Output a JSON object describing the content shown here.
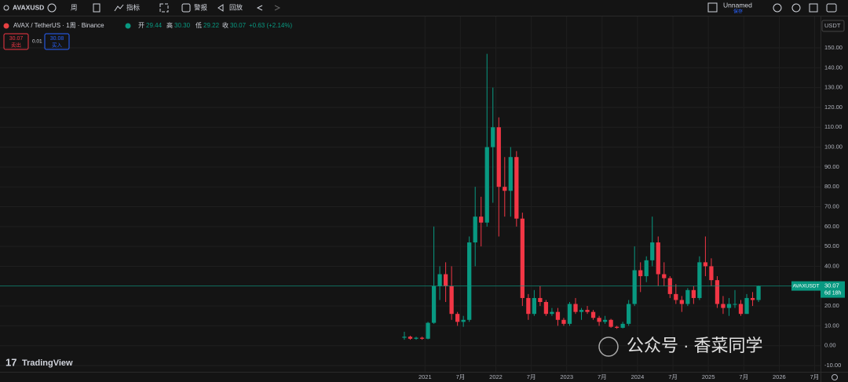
{
  "toolbar": {
    "symbol": "AVAXUSD",
    "interval": "周",
    "indicators": "指标",
    "alerts": "警报",
    "replay": "回放",
    "layout": "Unnamed",
    "save": "保存"
  },
  "legend": {
    "title": "AVAX / TetherUS · 1周 · Binance",
    "open_label": "开",
    "open": "29.44",
    "high_label": "高",
    "high": "30.30",
    "low_label": "低",
    "low": "29.22",
    "close_label": "收",
    "close": "30.07",
    "change": "+0.63 (+2.14%)",
    "sell_price": "30.07",
    "sell": "卖出",
    "spread": "0.01",
    "buy_price": "30.08",
    "buy": "买入"
  },
  "chart_data": {
    "type": "candlestick",
    "currency": "USDT",
    "up_color": "#089981",
    "down_color": "#f23645",
    "x": [
      "2020-09",
      "2020-10",
      "2020-11",
      "2020-12",
      "2021-01",
      "2021-02",
      "2021-03",
      "2021-04",
      "2021-05",
      "2021-06",
      "2021-07",
      "2021-08",
      "2021-09",
      "2021-10",
      "2021-11",
      "2021-12",
      "2022-01",
      "2022-02",
      "2022-03",
      "2022-04",
      "2022-05",
      "2022-06",
      "2022-07",
      "2022-08",
      "2022-09",
      "2022-10",
      "2022-11",
      "2022-12",
      "2023-01",
      "2023-02",
      "2023-03",
      "2023-04",
      "2023-05",
      "2023-06",
      "2023-07",
      "2023-08",
      "2023-09",
      "2023-10",
      "2023-11",
      "2023-12",
      "2024-01",
      "2024-02",
      "2024-03",
      "2024-04",
      "2024-05",
      "2024-06",
      "2024-07",
      "2024-08",
      "2024-09",
      "2024-10",
      "2024-11",
      "2024-12",
      "2025-01",
      "2025-02",
      "2025-03",
      "2025-04",
      "2025-05",
      "2025-06",
      "2025-07",
      "2025-08",
      "2025-09"
    ],
    "open": [
      4,
      4.5,
      3.5,
      4,
      3.5,
      11.5,
      30,
      36,
      30,
      16,
      12,
      13,
      52,
      65,
      62,
      100,
      110,
      80,
      78,
      95,
      64,
      24,
      16,
      24,
      22,
      16,
      17,
      13,
      11,
      21,
      17,
      18,
      17,
      14,
      12,
      13,
      9.5,
      9,
      11,
      21,
      38,
      35,
      43,
      52,
      36,
      34,
      26,
      23,
      21,
      28,
      24,
      42,
      40,
      33,
      21,
      19,
      21,
      21,
      16,
      24,
      23
    ],
    "high": [
      7,
      5,
      4.5,
      4.5,
      12,
      60,
      40,
      42,
      40,
      17,
      15,
      55,
      80,
      75,
      147,
      130,
      115,
      95,
      100,
      98,
      67,
      26,
      28,
      30,
      23,
      19,
      19,
      14,
      22,
      24,
      19,
      20,
      18,
      15,
      15,
      13.5,
      10,
      12,
      23,
      50,
      42,
      45,
      65,
      55,
      42,
      35,
      31,
      25,
      29,
      30,
      45,
      55,
      44,
      35,
      25,
      24,
      28,
      23,
      26,
      27,
      30.3
    ],
    "low": [
      3,
      3,
      3,
      3,
      3.2,
      11,
      23,
      22,
      13,
      10,
      9.5,
      12,
      40,
      50,
      60,
      72,
      55,
      65,
      65,
      60,
      20,
      13,
      15,
      20,
      15,
      15,
      10,
      10,
      10,
      16,
      13,
      16,
      13,
      10,
      11,
      9,
      8.5,
      8.7,
      10,
      20,
      27,
      32,
      40,
      30,
      30,
      24,
      21,
      17,
      20,
      21,
      23,
      35,
      30,
      19,
      16,
      15,
      19,
      15,
      16,
      20,
      22
    ],
    "close": [
      4.5,
      3.5,
      4,
      3.5,
      11.5,
      30,
      36,
      30,
      16,
      12,
      13,
      52,
      65,
      62,
      100,
      110,
      80,
      78,
      95,
      64,
      24,
      16,
      24,
      22,
      16,
      17,
      13,
      11,
      21,
      17,
      18,
      17,
      14,
      12,
      13,
      9.5,
      9,
      11,
      21,
      38,
      35,
      43,
      52,
      36,
      34,
      26,
      23,
      21,
      28,
      24,
      42,
      40,
      33,
      21,
      19,
      21,
      21,
      16,
      24,
      23,
      30.07
    ],
    "xlim": [
      "2015-01",
      "2026-08"
    ],
    "xticks": [
      {
        "value": "2021-01",
        "label": "2021"
      },
      {
        "value": "2021-07",
        "label": "7月"
      },
      {
        "value": "2022-01",
        "label": "2022"
      },
      {
        "value": "2022-07",
        "label": "7月"
      },
      {
        "value": "2023-01",
        "label": "2023"
      },
      {
        "value": "2023-07",
        "label": "7月"
      },
      {
        "value": "2024-01",
        "label": "2024"
      },
      {
        "value": "2024-07",
        "label": "7月"
      },
      {
        "value": "2025-01",
        "label": "2025"
      },
      {
        "value": "2025-07",
        "label": "7月"
      },
      {
        "value": "2026-01",
        "label": "2026"
      },
      {
        "value": "2026-07",
        "label": "7月"
      }
    ],
    "ylim": [
      -10,
      150
    ],
    "yticks": [
      {
        "value": 150,
        "label": "150.00"
      },
      {
        "value": 140,
        "label": "140.00"
      },
      {
        "value": 130,
        "label": "130.00"
      },
      {
        "value": 120,
        "label": "120.00"
      },
      {
        "value": 110,
        "label": "110.00"
      },
      {
        "value": 100,
        "label": "100.00"
      },
      {
        "value": 90,
        "label": "90.00"
      },
      {
        "value": 80,
        "label": "80.00"
      },
      {
        "value": 70,
        "label": "70.00"
      },
      {
        "value": 60,
        "label": "60.00"
      },
      {
        "value": 50,
        "label": "50.00"
      },
      {
        "value": 40,
        "label": "40.00"
      },
      {
        "value": 30,
        "label": "30.00"
      },
      {
        "value": 20,
        "label": "20.00"
      },
      {
        "value": 10,
        "label": "10.00"
      },
      {
        "value": 0,
        "label": "0.00"
      },
      {
        "value": -10,
        "label": "-10.00"
      }
    ],
    "grid": true,
    "last_price": {
      "symbol": "AVAXUSDT",
      "value": 30.07,
      "countdown": "6d 18h"
    }
  },
  "footer": {
    "brand": "TradingView",
    "watermark": "公众号 · 香菜同学"
  }
}
